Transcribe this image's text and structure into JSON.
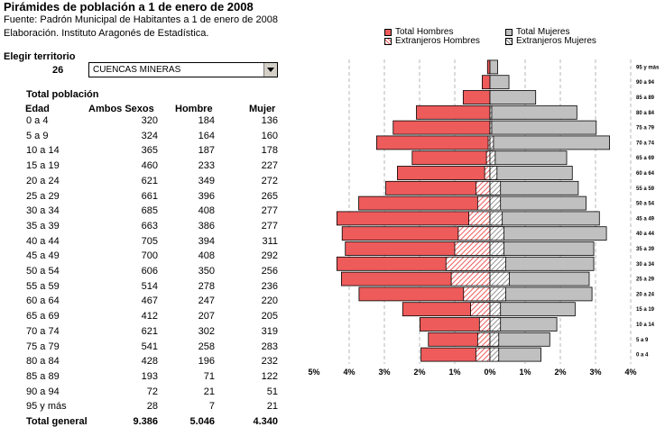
{
  "header": {
    "title": "Pirámides de población a 1 de enero de 2008",
    "source": "Fuente: Padrón Municipal de Habitantes a 1 de enero de 2008",
    "elaboration": "Elaboración. Instituto Aragonés de Estadística."
  },
  "legend": {
    "total_hombres": "Total Hombres",
    "total_mujeres": "Total Mujeres",
    "extranjeros_hombres": "Extranjeros Hombres",
    "extranjeros_mujeres": "Extranjeros Mujeres"
  },
  "colors": {
    "hombres": "#ee5b5b",
    "mujeres": "#c0c0c0"
  },
  "territory": {
    "label": "Elegir territorio",
    "code": "26",
    "selected": "CUENCAS MINERAS",
    "dropdown_icon": "chevron-down-icon"
  },
  "table": {
    "title": "Total población",
    "headers": {
      "edad": "Edad",
      "ambos": "Ambos Sexos",
      "hombre": "Hombre",
      "mujer": "Mujer"
    },
    "rows": [
      {
        "edad": "0 a 4",
        "ambos": "320",
        "hombre": "184",
        "mujer": "136"
      },
      {
        "edad": "5 a 9",
        "ambos": "324",
        "hombre": "164",
        "mujer": "160"
      },
      {
        "edad": "10 a 14",
        "ambos": "365",
        "hombre": "187",
        "mujer": "178"
      },
      {
        "edad": "15 a 19",
        "ambos": "460",
        "hombre": "233",
        "mujer": "227"
      },
      {
        "edad": "20 a 24",
        "ambos": "621",
        "hombre": "349",
        "mujer": "272"
      },
      {
        "edad": "25 a 29",
        "ambos": "661",
        "hombre": "396",
        "mujer": "265"
      },
      {
        "edad": "30 a 34",
        "ambos": "685",
        "hombre": "408",
        "mujer": "277"
      },
      {
        "edad": "35 a 39",
        "ambos": "663",
        "hombre": "386",
        "mujer": "277"
      },
      {
        "edad": "40 a 44",
        "ambos": "705",
        "hombre": "394",
        "mujer": "311"
      },
      {
        "edad": "45 a 49",
        "ambos": "700",
        "hombre": "408",
        "mujer": "292"
      },
      {
        "edad": "50 a 54",
        "ambos": "606",
        "hombre": "350",
        "mujer": "256"
      },
      {
        "edad": "55 a 59",
        "ambos": "514",
        "hombre": "278",
        "mujer": "236"
      },
      {
        "edad": "60 a 64",
        "ambos": "467",
        "hombre": "247",
        "mujer": "220"
      },
      {
        "edad": "65 a 69",
        "ambos": "412",
        "hombre": "207",
        "mujer": "205"
      },
      {
        "edad": "70 a 74",
        "ambos": "621",
        "hombre": "302",
        "mujer": "319"
      },
      {
        "edad": "75 a 79",
        "ambos": "541",
        "hombre": "258",
        "mujer": "283"
      },
      {
        "edad": "80 a 84",
        "ambos": "428",
        "hombre": "196",
        "mujer": "232"
      },
      {
        "edad": "85 a 89",
        "ambos": "193",
        "hombre": "71",
        "mujer": "122"
      },
      {
        "edad": "90 a 94",
        "ambos": "72",
        "hombre": "21",
        "mujer": "51"
      },
      {
        "edad": "95 y más",
        "ambos": "28",
        "hombre": "7",
        "mujer": "21"
      }
    ],
    "total": {
      "edad": "Total general",
      "ambos": "9.386",
      "hombre": "5.046",
      "mujer": "4.340"
    }
  },
  "chart_data": {
    "type": "bar",
    "orientation": "horizontal-pyramid",
    "categories": [
      "0 a 4",
      "5 a 9",
      "10 a 14",
      "15 a 19",
      "20 a 24",
      "25 a 29",
      "30 a 34",
      "35 a 39",
      "40 a 44",
      "45 a 49",
      "50 a 54",
      "55 a 59",
      "60 a 64",
      "65 a 69",
      "70 a 74",
      "75 a 79",
      "80 a 84",
      "85 a 89",
      "90 a 94",
      "95 y más"
    ],
    "series": [
      {
        "name": "Total Hombres",
        "values": [
          1.96,
          1.75,
          1.99,
          2.48,
          3.72,
          4.22,
          4.35,
          4.11,
          4.2,
          4.35,
          3.73,
          2.96,
          2.63,
          2.21,
          3.22,
          2.75,
          2.09,
          0.76,
          0.22,
          0.07
        ]
      },
      {
        "name": "Total Mujeres",
        "values": [
          1.45,
          1.7,
          1.9,
          2.42,
          2.9,
          2.82,
          2.95,
          2.95,
          3.31,
          3.11,
          2.73,
          2.51,
          2.34,
          2.18,
          3.4,
          3.02,
          2.47,
          1.3,
          0.54,
          0.22
        ]
      },
      {
        "name": "Extranjeros Hombres",
        "values": [
          0.4,
          0.35,
          0.3,
          0.55,
          0.75,
          1.1,
          1.25,
          1.0,
          0.9,
          0.6,
          0.35,
          0.4,
          0.15,
          0.1,
          0.05,
          0.0,
          0.0,
          0.0,
          0.0,
          0.0
        ]
      },
      {
        "name": "Extranjeros Mujeres",
        "values": [
          0.25,
          0.25,
          0.3,
          0.3,
          0.45,
          0.55,
          0.45,
          0.4,
          0.4,
          0.35,
          0.3,
          0.3,
          0.2,
          0.15,
          0.1,
          0.05,
          0.05,
          0.0,
          0.0,
          0.0
        ]
      }
    ],
    "x_ticks": [
      "5%",
      "4%",
      "3%",
      "2%",
      "1%",
      "0%",
      "1%",
      "2%",
      "3%",
      "4%"
    ],
    "right_labels": [
      "95 y más",
      "90 a 94",
      "85 a 89",
      "80 a 84",
      "75 a 79",
      "70 a 74",
      "65 a 69",
      "60 a 64",
      "55 a 59",
      "50 a 54",
      "45 a 49",
      "40 a 44",
      "35 a 39",
      "30 a 34",
      "25 a 29",
      "20 a 24",
      "15 a 19",
      "10 a 14",
      "5 a 9",
      "0 a 4"
    ],
    "xlim": [
      -5,
      4
    ],
    "grid": true
  }
}
